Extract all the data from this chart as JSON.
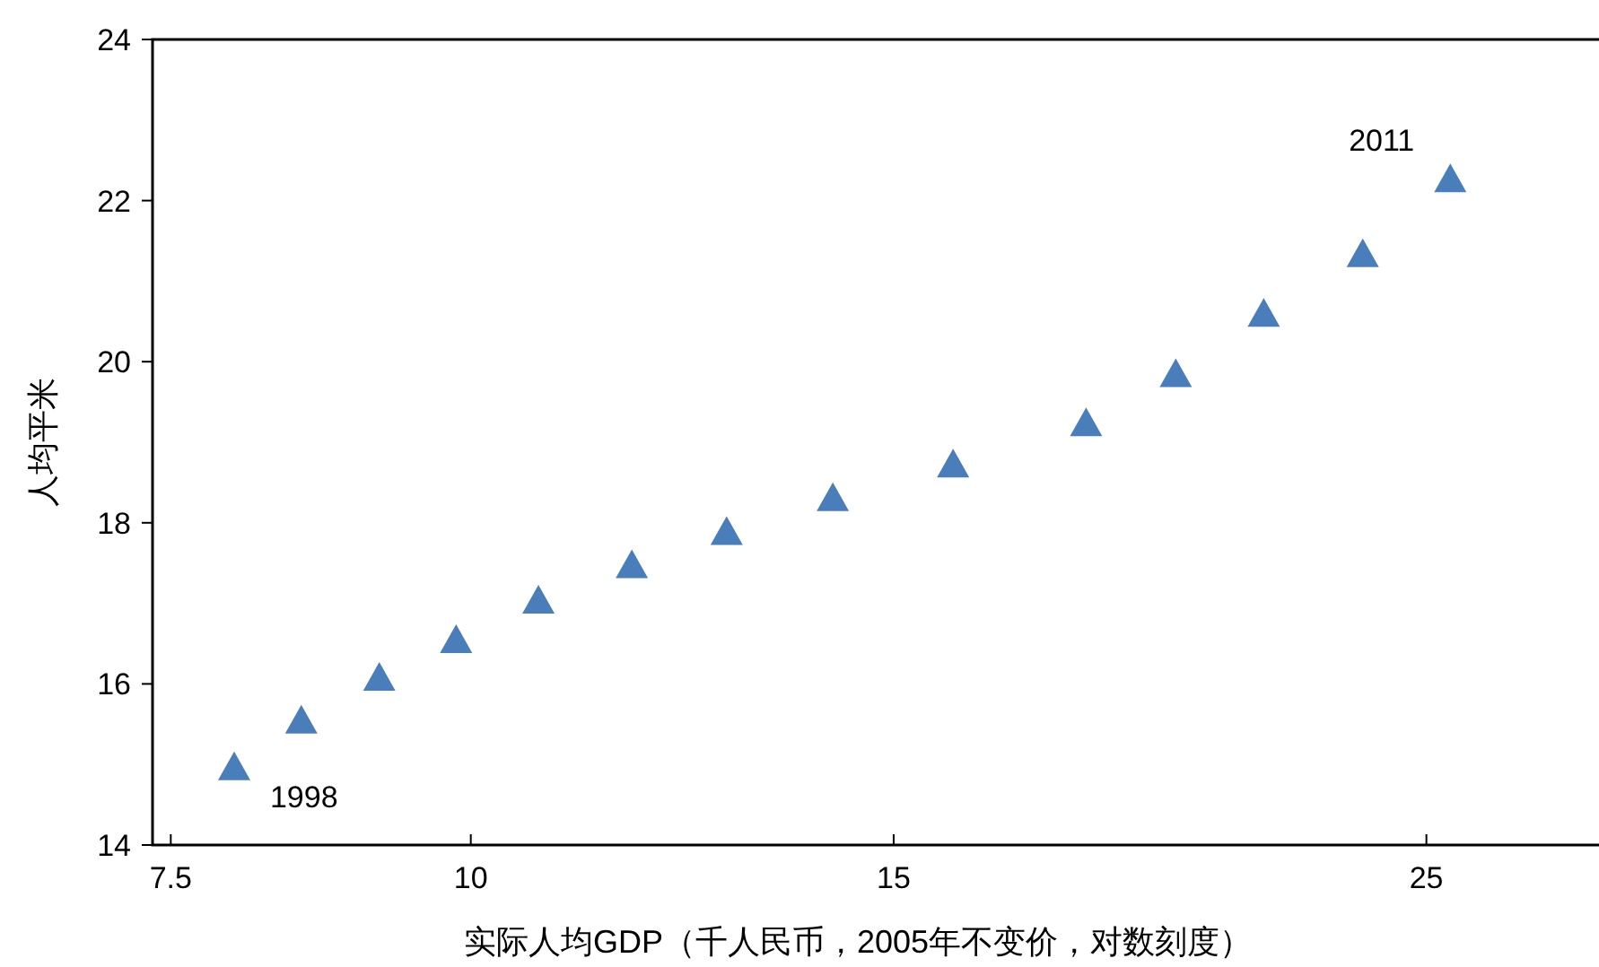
{
  "chart_data": {
    "type": "scatter",
    "xlabel": "实际人均GDP（千人民币，2005年不变价，对数刻度）",
    "ylabel": "人均平米",
    "x": [
      7.97,
      8.5,
      9.16,
      9.86,
      10.67,
      11.67,
      12.78,
      14.15,
      15.88,
      18.04,
      19.66,
      21.39,
      23.52,
      25.58
    ],
    "series": [
      {
        "color": "#4a7ebb",
        "values": [
          14.96,
          15.54,
          16.07,
          16.54,
          17.03,
          17.47,
          17.88,
          18.3,
          18.72,
          19.23,
          19.84,
          20.59,
          21.33,
          22.26
        ]
      }
    ],
    "marker": "triangle",
    "log": "x",
    "xlim": [
      7.37,
      29.5
    ],
    "ylim": [
      14,
      24
    ],
    "xticks": [
      7.5,
      10,
      15,
      25
    ],
    "yticks": [
      14,
      16,
      18,
      20,
      22,
      24
    ],
    "grid": false,
    "annotations": [
      {
        "text": "1998",
        "x": 7.97,
        "y": 14.96
      },
      {
        "text": "2011",
        "x": 25.58,
        "y": 22.26
      }
    ]
  }
}
